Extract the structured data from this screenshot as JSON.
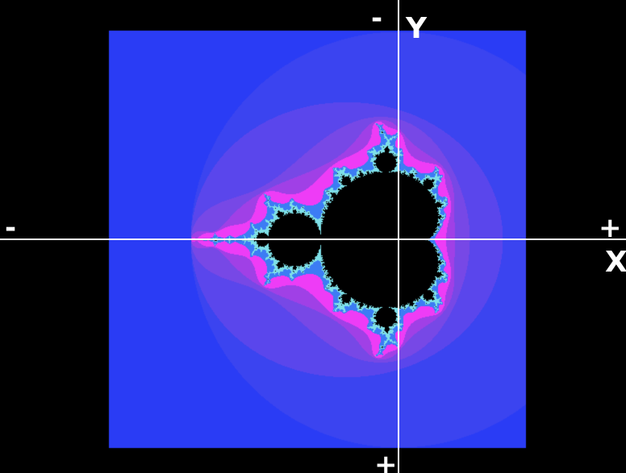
{
  "axes": {
    "x_name": "X",
    "y_name": "Y",
    "x_negative": "-",
    "x_positive": "+",
    "y_negative": "-",
    "y_positive": "+"
  },
  "fractal": {
    "type": "mandelbrot",
    "background_color": "#000000",
    "set_color": "#000000",
    "axis_color": "#ffffff",
    "palette": [
      "#2a3cf5",
      "#3b44f0",
      "#5a46ec",
      "#7748e6",
      "#a040e6",
      "#ee3cf6",
      "#3c7cf4",
      "#7ee0e8"
    ]
  }
}
